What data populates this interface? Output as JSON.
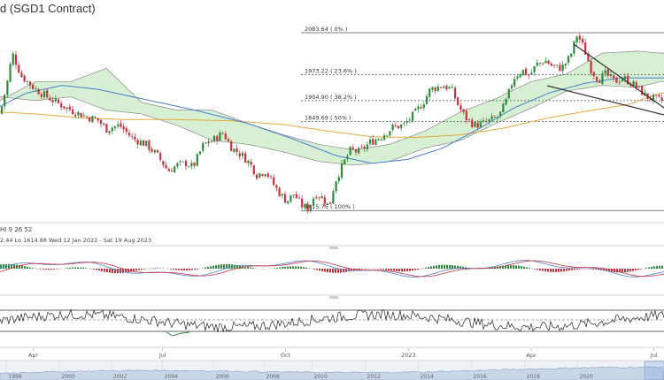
{
  "title": "d (SGD1 Contract)",
  "indicator_label": "HI  9  26  52",
  "ohlc_label": "2.44    Lo 1614.88    Wed 12 Jan 2022 - Sat 19 Aug 2023",
  "time_labels": [
    {
      "label": "Apr",
      "t": 0.05
    },
    {
      "label": "Jul",
      "t": 0.245
    },
    {
      "label": "Oct",
      "t": 0.43
    },
    {
      "label": "2023",
      "t": 0.615
    },
    {
      "label": "Apr",
      "t": 0.8
    },
    {
      "label": "Jul",
      "t": 0.985
    }
  ],
  "navigator_labels": [
    {
      "label": "1998",
      "t": 0.01
    },
    {
      "label": "2000",
      "t": 0.09
    },
    {
      "label": "2002",
      "t": 0.168
    },
    {
      "label": "2004",
      "t": 0.245
    },
    {
      "label": "2006",
      "t": 0.322
    },
    {
      "label": "2008",
      "t": 0.398
    },
    {
      "label": "2010",
      "t": 0.47
    },
    {
      "label": "2012",
      "t": 0.55
    },
    {
      "label": "2014",
      "t": 0.63
    },
    {
      "label": "2016",
      "t": 0.71
    },
    {
      "label": "2018",
      "t": 0.79
    },
    {
      "label": "2020",
      "t": 0.87
    }
  ],
  "colors": {
    "up": "#2e8b3a",
    "down": "#c8323c",
    "ma200": "#e6a93a",
    "ma50": "#4a7fd1",
    "cloud_bull": "#d7efd2",
    "cloud_bear": "#f3d6d6",
    "trend": "#333333"
  },
  "chart_data": [
    {
      "type": "candlestick",
      "title": "d (SGD1 Contract)",
      "ylim": [
        1600,
        2100
      ],
      "fib_levels": [
        {
          "label": "2083.64 ( 0% )",
          "value": 2083.64
        },
        {
          "label": "1973.22 ( 23.6% )",
          "value": 1973.22
        },
        {
          "label": "1904.90 ( 38.2% )",
          "value": 1904.9
        },
        {
          "label": "1849.69 ( 50% )",
          "value": 1849.69
        },
        {
          "label": "1615.75 ( 100% )",
          "value": 1615.75
        }
      ],
      "close_anchors": [
        [
          0,
          1870
        ],
        [
          8,
          1950
        ],
        [
          14,
          2030
        ],
        [
          24,
          1970
        ],
        [
          40,
          1935
        ],
        [
          60,
          1905
        ],
        [
          80,
          1880
        ],
        [
          100,
          1860
        ],
        [
          110,
          1855
        ],
        [
          120,
          1830
        ],
        [
          135,
          1840
        ],
        [
          150,
          1805
        ],
        [
          165,
          1790
        ],
        [
          178,
          1760
        ],
        [
          190,
          1720
        ],
        [
          200,
          1735
        ],
        [
          210,
          1740
        ],
        [
          218,
          1730
        ],
        [
          230,
          1790
        ],
        [
          240,
          1800
        ],
        [
          252,
          1820
        ],
        [
          262,
          1780
        ],
        [
          274,
          1760
        ],
        [
          282,
          1740
        ],
        [
          290,
          1710
        ],
        [
          300,
          1720
        ],
        [
          310,
          1680
        ],
        [
          318,
          1655
        ],
        [
          324,
          1640
        ],
        [
          332,
          1660
        ],
        [
          340,
          1630
        ],
        [
          348,
          1620
        ],
        [
          356,
          1660
        ],
        [
          364,
          1650
        ],
        [
          372,
          1625
        ],
        [
          378,
          1690
        ],
        [
          388,
          1740
        ],
        [
          396,
          1775
        ],
        [
          406,
          1770
        ],
        [
          418,
          1795
        ],
        [
          430,
          1810
        ],
        [
          444,
          1835
        ],
        [
          456,
          1840
        ],
        [
          468,
          1870
        ],
        [
          478,
          1900
        ],
        [
          486,
          1935
        ],
        [
          500,
          1945
        ],
        [
          510,
          1935
        ],
        [
          518,
          1890
        ],
        [
          526,
          1860
        ],
        [
          536,
          1840
        ],
        [
          546,
          1845
        ],
        [
          556,
          1855
        ],
        [
          564,
          1865
        ],
        [
          572,
          1905
        ],
        [
          580,
          1965
        ],
        [
          590,
          1985
        ],
        [
          598,
          1970
        ],
        [
          606,
          2000
        ],
        [
          616,
          2010
        ],
        [
          624,
          1995
        ],
        [
          634,
          1990
        ],
        [
          644,
          2020
        ],
        [
          652,
          2080
        ],
        [
          660,
          2040
        ],
        [
          668,
          1985
        ],
        [
          676,
          1960
        ],
        [
          684,
          1975
        ],
        [
          694,
          1955
        ],
        [
          704,
          1965
        ],
        [
          714,
          1950
        ],
        [
          722,
          1935
        ],
        [
          730,
          1915
        ],
        [
          738,
          1910
        ],
        [
          746,
          1905
        ]
      ],
      "ma200_anchors": [
        [
          0,
          1875
        ],
        [
          40,
          1870
        ],
        [
          90,
          1860
        ],
        [
          140,
          1855
        ],
        [
          200,
          1855
        ],
        [
          260,
          1852
        ],
        [
          320,
          1842
        ],
        [
          370,
          1825
        ],
        [
          420,
          1810
        ],
        [
          470,
          1808
        ],
        [
          520,
          1815
        ],
        [
          570,
          1833
        ],
        [
          620,
          1860
        ],
        [
          670,
          1880
        ],
        [
          710,
          1895
        ],
        [
          746,
          1925
        ]
      ],
      "ma50_anchors": [
        [
          0,
          1890
        ],
        [
          30,
          1925
        ],
        [
          70,
          1945
        ],
        [
          110,
          1935
        ],
        [
          160,
          1910
        ],
        [
          220,
          1880
        ],
        [
          280,
          1845
        ],
        [
          330,
          1805
        ],
        [
          380,
          1760
        ],
        [
          420,
          1740
        ],
        [
          460,
          1750
        ],
        [
          500,
          1780
        ],
        [
          540,
          1830
        ],
        [
          580,
          1885
        ],
        [
          620,
          1925
        ],
        [
          660,
          1950
        ],
        [
          700,
          1965
        ],
        [
          746,
          1965
        ]
      ],
      "cloud_upper_anchors": [
        [
          0,
          1905
        ],
        [
          40,
          1955
        ],
        [
          80,
          1955
        ],
        [
          120,
          1990
        ],
        [
          160,
          1900
        ],
        [
          200,
          1880
        ],
        [
          240,
          1880
        ],
        [
          280,
          1845
        ],
        [
          320,
          1815
        ],
        [
          360,
          1790
        ],
        [
          400,
          1775
        ],
        [
          440,
          1790
        ],
        [
          480,
          1825
        ],
        [
          520,
          1875
        ],
        [
          560,
          1910
        ],
        [
          600,
          1955
        ],
        [
          640,
          1975
        ],
        [
          680,
          2030
        ],
        [
          720,
          2035
        ],
        [
          746,
          2030
        ]
      ],
      "cloud_lower_anchors": [
        [
          0,
          1915
        ],
        [
          40,
          1905
        ],
        [
          80,
          1915
        ],
        [
          120,
          1880
        ],
        [
          160,
          1870
        ],
        [
          200,
          1840
        ],
        [
          240,
          1800
        ],
        [
          280,
          1790
        ],
        [
          320,
          1770
        ],
        [
          360,
          1745
        ],
        [
          400,
          1735
        ],
        [
          440,
          1745
        ],
        [
          480,
          1780
        ],
        [
          520,
          1800
        ],
        [
          560,
          1845
        ],
        [
          600,
          1885
        ],
        [
          640,
          1930
        ],
        [
          680,
          1945
        ],
        [
          720,
          1940
        ],
        [
          746,
          1955
        ]
      ]
    }
  ]
}
